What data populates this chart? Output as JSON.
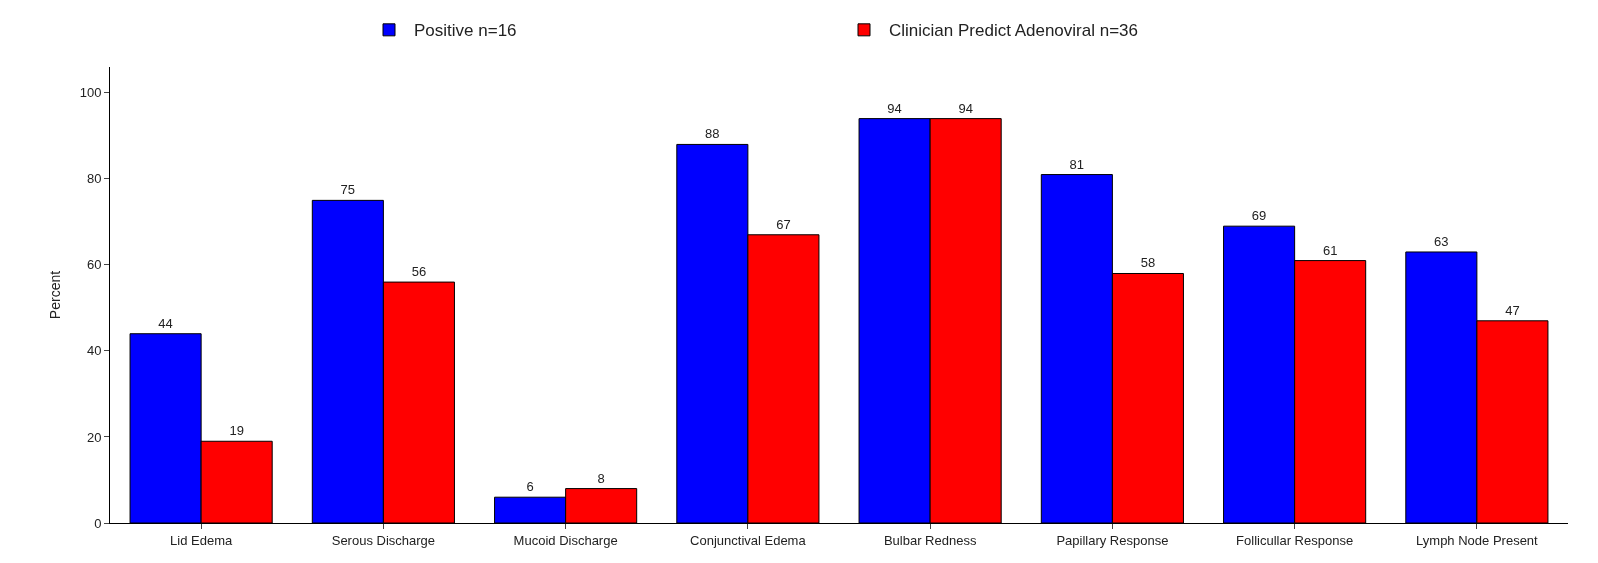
{
  "chart_data": {
    "type": "bar",
    "ylabel": "Percent",
    "categories": [
      "Lid Edema",
      "Serous Discharge",
      "Mucoid Discharge",
      "Conjunctival Edema",
      "Bulbar Redness",
      "Papillary Response",
      "Follicullar Response",
      "Lymph Node Present"
    ],
    "series": [
      {
        "name": "Positive n=16",
        "color": "#0000ff",
        "values": [
          44,
          75,
          6,
          88,
          94,
          81,
          69,
          63
        ]
      },
      {
        "name": "Clinician Predict Adenoviral n=36",
        "color": "#ff0000",
        "values": [
          19,
          56,
          8,
          67,
          94,
          58,
          61,
          47
        ]
      }
    ],
    "ylim": [
      0,
      106
    ],
    "yticks": [
      0,
      20,
      40,
      60,
      80,
      100
    ],
    "legend": "top",
    "data_labels": true
  }
}
